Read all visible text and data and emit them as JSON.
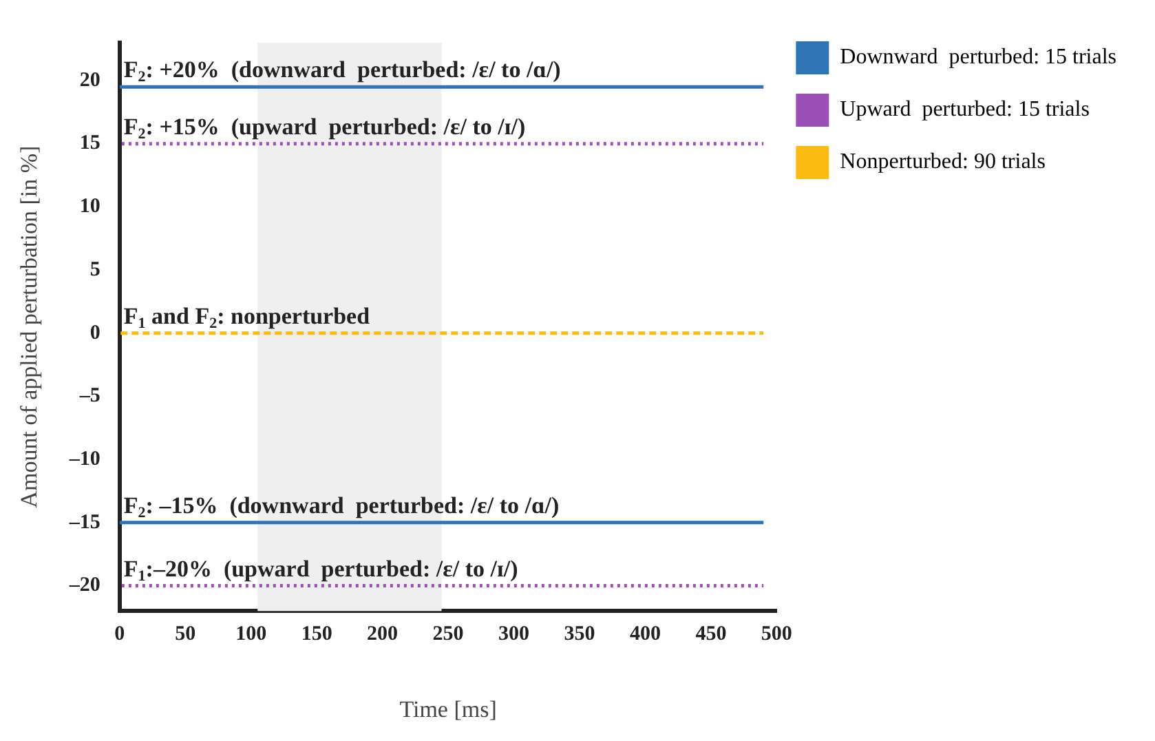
{
  "chart_data": {
    "type": "line",
    "xlabel": "Time [ms]",
    "ylabel": "Amount of applied perturbation [in %]",
    "xlim": [
      0,
      500
    ],
    "xticks": [
      0,
      50,
      100,
      150,
      200,
      250,
      300,
      350,
      400,
      450,
      500
    ],
    "ylim": [
      -22,
      23
    ],
    "yticks": [
      {
        "value": -20,
        "label": "–20"
      },
      {
        "value": -15,
        "label": "–15"
      },
      {
        "value": -10,
        "label": "–10"
      },
      {
        "value": -5,
        "label": "–5"
      },
      0,
      5,
      10,
      15,
      20
    ],
    "grid": false,
    "legend": "right",
    "marker": "none",
    "x": [
      0,
      490
    ],
    "series": [
      {
        "name": "Downward  perturbed: 15 trials",
        "color": "#2e75b6",
        "values": [
          19.5,
          19.5
        ],
        "line_style": "solid"
      },
      {
        "name": "Upward  perturbed: 15 trials",
        "color": "#9b50b8",
        "values": [
          15,
          15
        ],
        "line_style": "dotted"
      },
      {
        "name": "Nonperturbed: 90 trials",
        "color": "#fbbc12",
        "values": [
          0,
          0
        ],
        "line_style": "dashed"
      },
      {
        "color": "#2e75b6",
        "values": [
          -15,
          -15
        ],
        "line_style": "solid"
      },
      {
        "color": "#9b50b8",
        "values": [
          -20,
          -20
        ],
        "line_style": "dotted"
      }
    ],
    "bands": [
      {
        "axis": "x",
        "from": 105,
        "to": 245,
        "color": "#efefef"
      }
    ],
    "annotations": [
      {
        "text": "F$_{2}$: +20%  (downward  perturbed: /ε/ to /ɑ/)",
        "y": 19.5
      },
      {
        "text": "F$_{2}$: +15%  (upward  perturbed: /ε/ to /ɪ/)",
        "y": 15
      },
      {
        "text": "F$_{1}$ and F$_{2}$: nonperturbed",
        "y": 0
      },
      {
        "text": "F$_{2}$: –15%  (downward  perturbed: /ε/ to /ɑ/)",
        "y": -15
      },
      {
        "text": "F$_{1}$:–20%  (upward  perturbed: /ε/ to /ɪ/)",
        "y": -20
      }
    ]
  }
}
